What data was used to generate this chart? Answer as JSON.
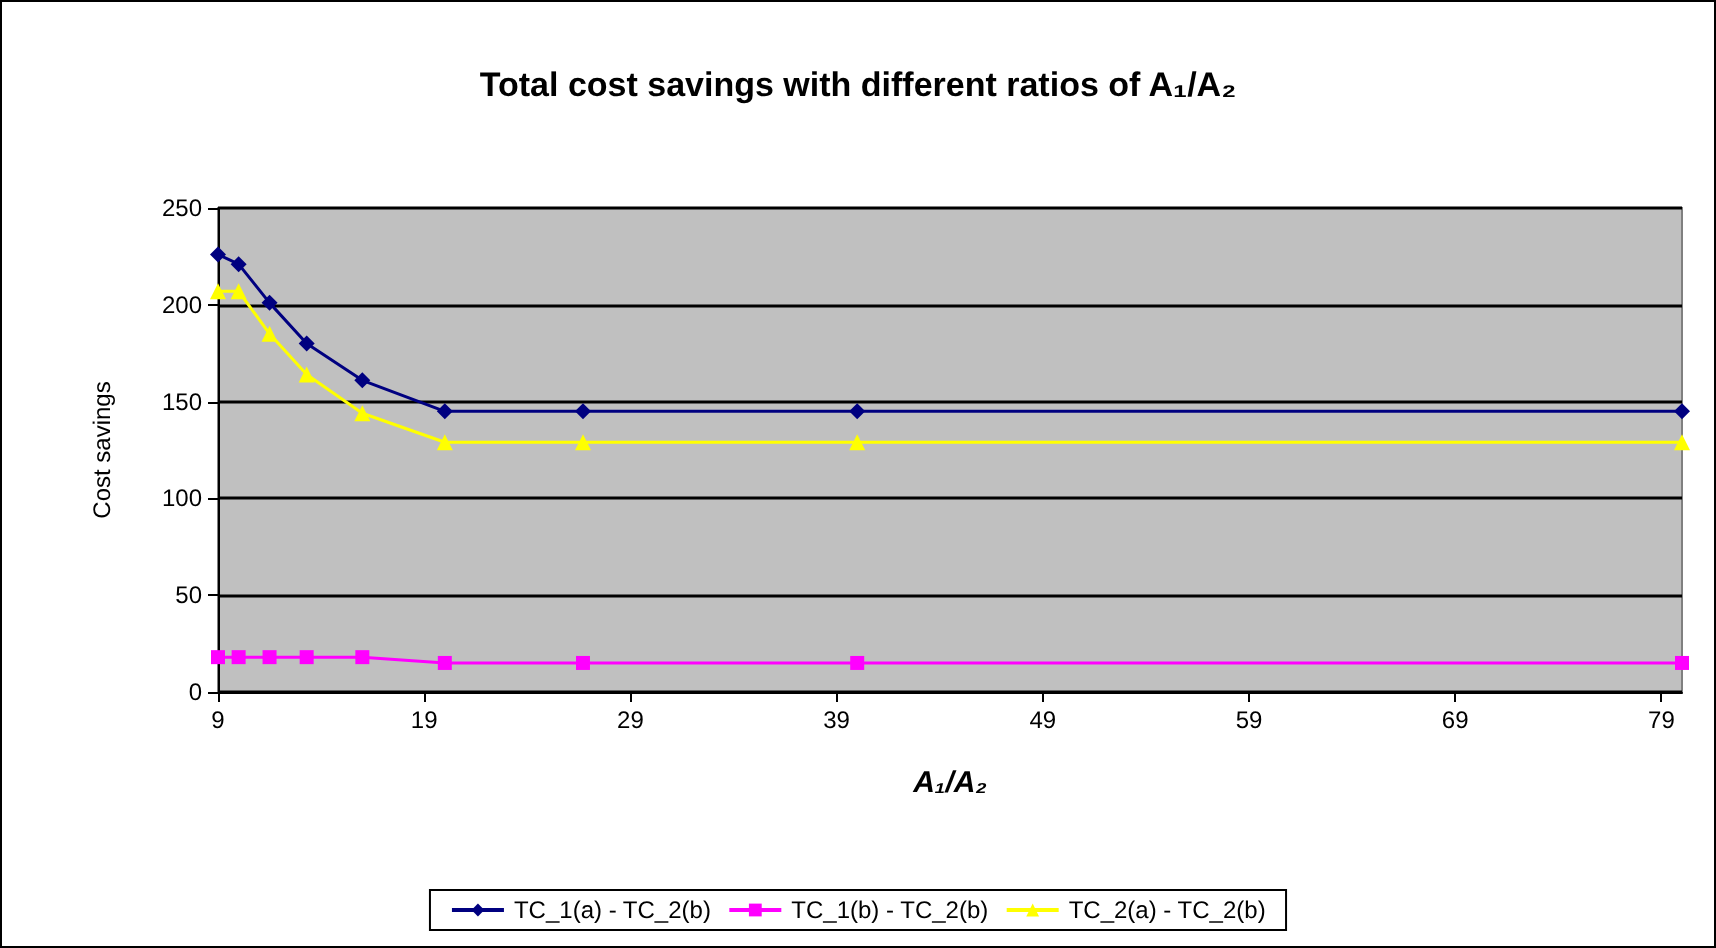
{
  "chart_data": {
    "type": "line",
    "title": "Total cost savings with different ratios of A₁/A₂",
    "xlabel": "A₁/A₂",
    "ylabel": "Cost savings",
    "x": [
      9,
      10,
      11.5,
      13.3,
      16,
      20,
      26.7,
      40,
      80
    ],
    "series": [
      {
        "name": "TC_1(a) - TC_2(b)",
        "color": "#000080",
        "marker": "diamond",
        "values": [
          226,
          221,
          201,
          180,
          161,
          145,
          145,
          145,
          145
        ]
      },
      {
        "name": "TC_1(b) - TC_2(b)",
        "color": "#ff00ff",
        "marker": "square",
        "values": [
          18,
          18,
          18,
          18,
          18,
          15,
          15,
          15,
          15
        ]
      },
      {
        "name": "TC_2(a) - TC_2(b)",
        "color": "#ffff00",
        "marker": "triangle",
        "values": [
          207,
          207,
          185,
          164,
          144,
          129,
          129,
          129,
          129
        ]
      }
    ],
    "xlim": [
      9,
      80
    ],
    "xticks": [
      9,
      19,
      29,
      39,
      49,
      59,
      69,
      79
    ],
    "ylim": [
      0,
      250
    ],
    "yticks": [
      0,
      50,
      100,
      150,
      200,
      250
    ],
    "grid": "y",
    "legend": "bottom",
    "line_style": "solid"
  }
}
